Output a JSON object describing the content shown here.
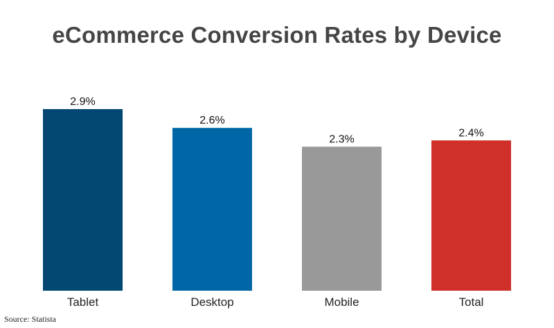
{
  "chart_data": {
    "type": "bar",
    "title": "eCommerce Conversion Rates by Device",
    "categories": [
      "Tablet",
      "Desktop",
      "Mobile",
      "Total"
    ],
    "values": [
      2.9,
      2.6,
      2.3,
      2.4
    ],
    "value_labels": [
      "2.9%",
      "2.6%",
      "2.3%",
      "2.4%"
    ],
    "colors": [
      "#004872",
      "#0067a7",
      "#999999",
      "#d0302a"
    ],
    "ylim": [
      0,
      2.9
    ],
    "grid": false,
    "legend": "none"
  },
  "source": "Source: Statista"
}
